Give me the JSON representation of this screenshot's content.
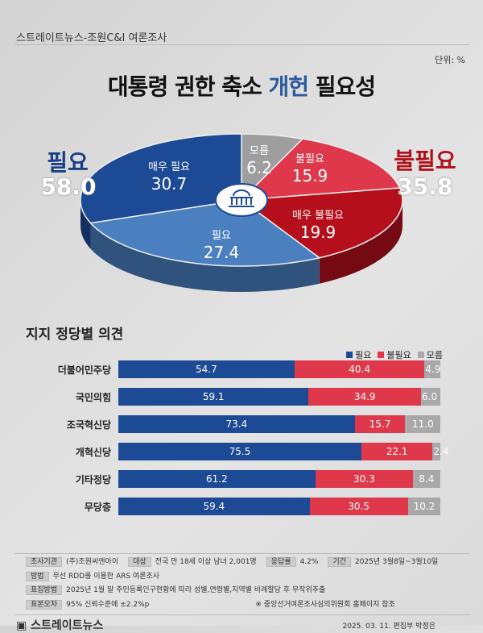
{
  "header": {
    "source": "스트레이트뉴스-조원C&I 여론조사",
    "unit": "단위: %",
    "title_pre": "대통령 권한 축소 ",
    "title_hl": "개헌",
    "title_post": " 필요성"
  },
  "summary": {
    "need_label": "필요",
    "need_value": "58.0",
    "noneed_label": "불필요",
    "noneed_value": "35.8"
  },
  "colors": {
    "strong_need": "#1d4a94",
    "need": "#4a7fc0",
    "dk": "#9e9e9e",
    "noneed": "#e0384b",
    "strong_noneed": "#b50f1c"
  },
  "chart_data": [
    {
      "type": "pie",
      "slices": [
        {
          "name": "모름",
          "value": 6.2,
          "color": "#9e9e9e"
        },
        {
          "name": "불필요",
          "value": 15.9,
          "color": "#e0384b"
        },
        {
          "name": "매우 불필요",
          "value": 19.9,
          "color": "#b50f1c"
        },
        {
          "name": "필요",
          "value": 27.4,
          "color": "#4a7fc0"
        },
        {
          "name": "매우 필요",
          "value": 30.7,
          "color": "#1d4a94"
        }
      ]
    },
    {
      "type": "bar",
      "title": "지지 정당별 의견",
      "stacked": true,
      "orientation": "horizontal",
      "categories": [
        "더불어민주당",
        "국민의힘",
        "조국혁신당",
        "개혁신당",
        "기타정당",
        "무당층"
      ],
      "series": [
        {
          "name": "필요",
          "color": "#1d4a94",
          "values": [
            54.7,
            59.1,
            73.4,
            75.5,
            61.2,
            59.4
          ]
        },
        {
          "name": "불필요",
          "color": "#e0384b",
          "values": [
            40.4,
            34.9,
            15.7,
            22.1,
            30.3,
            30.5
          ]
        },
        {
          "name": "모름",
          "color": "#a8a8a8",
          "values": [
            4.9,
            6.0,
            11.0,
            2.4,
            8.4,
            10.2
          ]
        }
      ],
      "legend": "top-right"
    }
  ],
  "footer": {
    "row1": [
      [
        "조사기관",
        "(주)조원씨앤아이"
      ],
      [
        "대상",
        "전국 만 18세 이상 남녀 2,001명"
      ],
      [
        "응답률",
        "4.2%"
      ],
      [
        "기간",
        "2025년 3월8일~3월10일"
      ]
    ],
    "row2": [
      [
        "방법",
        "무선 RDD를 이용한 ARS 여론조사"
      ],
      [
        "표집방법",
        "2025년 1월 말 주민등록인구현황에 따라 성별,연령별,지역별 비례할당 후 무작위추출"
      ]
    ],
    "row3": [
      [
        "표본오차",
        "95% 신뢰수준에 ±2.2%p"
      ]
    ],
    "note": "※ 중앙선거여론조사심의위원회 홈페이지 참조",
    "logo": "스트레이트뉴스",
    "credit": "2025. 03. 11. 편집부 박정은"
  }
}
